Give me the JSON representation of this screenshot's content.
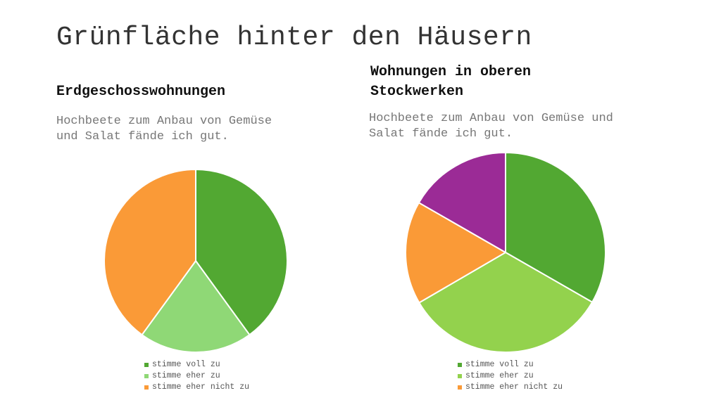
{
  "title": "Grünfläche hinter den Häusern",
  "chart_data": [
    {
      "type": "pie",
      "title": "Erdgeschosswohnungen",
      "subtitle": "Hochbeete zum Anbau von Gemüse und Salat fände ich gut.",
      "categories": [
        "stimme voll zu",
        "stimme eher zu",
        "stimme eher nicht zu"
      ],
      "values": [
        40,
        20,
        40
      ],
      "colors": [
        "#52a832",
        "#8fd876",
        "#fa9a37"
      ],
      "legend_position": "bottom"
    },
    {
      "type": "pie",
      "title": "Wohnungen in oberen Stockwerken",
      "subtitle": "Hochbeete zum Anbau von Gemüse und Salat fände ich gut.",
      "categories": [
        "stimme voll zu",
        "stimme eher zu",
        "stimme eher nicht zu",
        ""
      ],
      "legend_categories": [
        "stimme voll zu",
        "stimme eher zu",
        "stimme eher nicht zu"
      ],
      "values": [
        33.3,
        33.3,
        16.7,
        16.7
      ],
      "colors": [
        "#52a832",
        "#93d24d",
        "#fa9a37",
        "#9b2b96"
      ],
      "legend_position": "bottom"
    }
  ]
}
